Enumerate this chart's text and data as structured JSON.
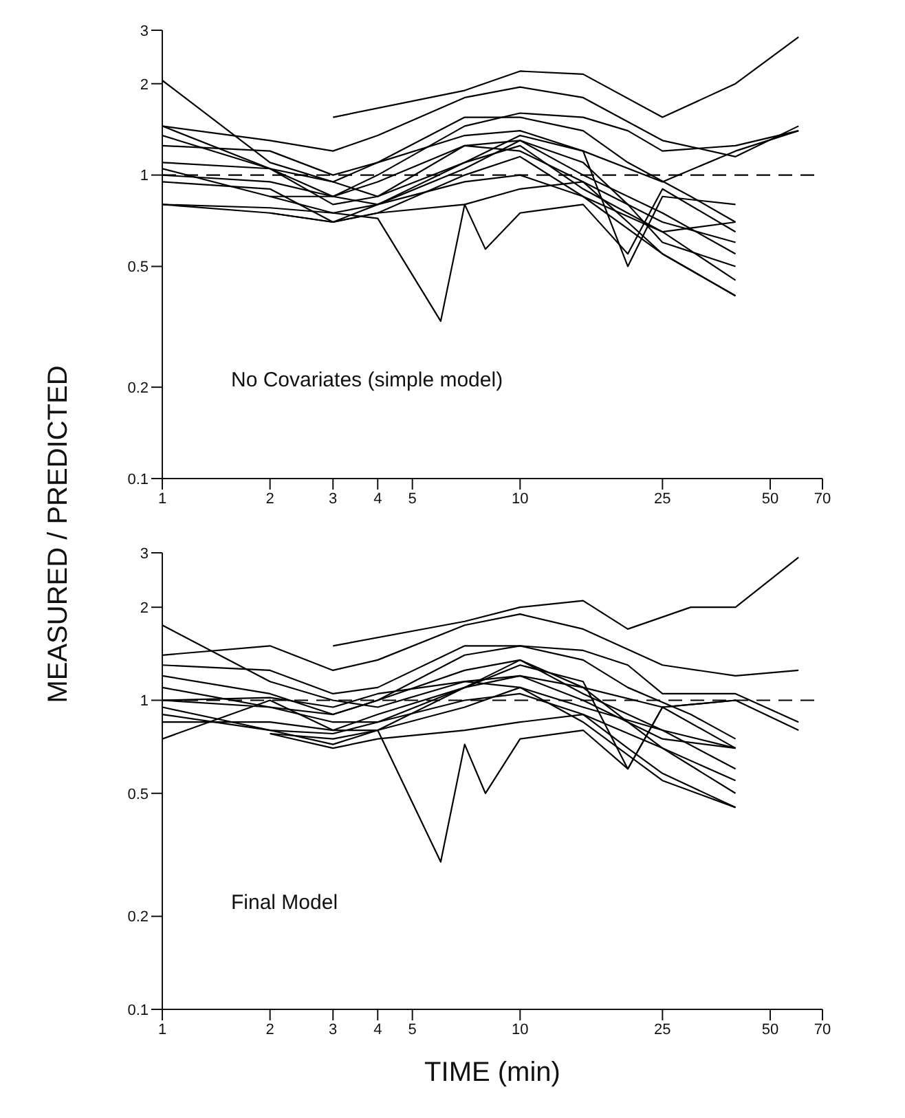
{
  "chart_data": [
    {
      "type": "line",
      "ylabel": "MEASURED / PREDICTED",
      "annotations": [
        "No Covariates (simple model)"
      ],
      "log": "xy",
      "grid": false,
      "marker": "none",
      "line_style": "solid",
      "xlim": [
        1,
        70
      ],
      "xticks": [
        1,
        2,
        3,
        4,
        5,
        10,
        25,
        50,
        70
      ],
      "ylim": [
        0.1,
        3
      ],
      "yticks": [
        0.1,
        0.2,
        0.5,
        1,
        2,
        3
      ],
      "ref_lines": [
        {
          "axis": "y",
          "value": 1,
          "line_style": "dashed",
          "color": "#000000"
        }
      ],
      "series": [
        {
          "color": "#000000",
          "x": [
            1,
            2,
            3,
            4,
            7,
            10,
            15,
            25,
            40
          ],
          "values": [
            2.05,
            1.1,
            0.95,
            0.85,
            1.25,
            1.2,
            0.95,
            0.7,
            0.6
          ]
        },
        {
          "color": "#000000",
          "x": [
            3,
            7,
            10,
            15,
            25,
            40,
            60
          ],
          "values": [
            1.55,
            1.9,
            2.2,
            2.15,
            1.55,
            2.0,
            2.85
          ]
        },
        {
          "color": "#000000",
          "x": [
            1,
            2,
            3,
            4,
            7,
            10,
            15,
            25,
            40,
            60
          ],
          "values": [
            1.45,
            1.3,
            1.2,
            1.35,
            1.8,
            1.95,
            1.8,
            1.3,
            1.15,
            1.45
          ]
        },
        {
          "color": "#000000",
          "x": [
            1,
            2,
            3,
            4,
            7,
            10,
            15,
            25,
            40,
            60
          ],
          "values": [
            1.35,
            1.05,
            0.95,
            1.1,
            1.35,
            1.4,
            1.2,
            0.95,
            1.2,
            1.4
          ]
        },
        {
          "color": "#000000",
          "x": [
            1,
            2,
            3,
            4,
            6,
            7,
            8,
            10,
            15,
            20,
            25,
            40
          ],
          "values": [
            0.8,
            0.78,
            0.75,
            0.72,
            0.33,
            0.8,
            0.57,
            0.75,
            0.8,
            0.55,
            0.9,
            0.65
          ]
        },
        {
          "color": "#000000",
          "x": [
            1,
            2,
            3,
            4,
            7,
            10,
            15,
            25,
            40
          ],
          "values": [
            1.0,
            0.95,
            0.85,
            0.8,
            0.95,
            1.0,
            0.85,
            0.65,
            0.45
          ]
        },
        {
          "color": "#000000",
          "x": [
            1,
            2,
            3,
            4,
            7,
            10,
            15,
            25,
            40
          ],
          "values": [
            1.1,
            1.05,
            0.85,
            0.95,
            1.25,
            1.3,
            1.0,
            0.75,
            0.55
          ]
        },
        {
          "color": "#000000",
          "x": [
            1,
            2,
            3,
            4,
            7,
            10,
            15,
            25,
            40
          ],
          "values": [
            0.95,
            0.9,
            0.7,
            0.75,
            1.0,
            1.15,
            0.85,
            0.55,
            0.4
          ]
        },
        {
          "color": "#000000",
          "x": [
            1,
            2,
            3,
            4,
            7,
            10,
            15,
            25,
            40
          ],
          "values": [
            1.45,
            1.05,
            0.8,
            0.85,
            1.1,
            1.25,
            0.9,
            0.65,
            0.7
          ]
        },
        {
          "color": "#000000",
          "x": [
            2,
            3,
            4,
            7,
            10,
            15,
            20,
            25,
            40
          ],
          "values": [
            0.85,
            0.75,
            0.8,
            1.05,
            1.3,
            1.1,
            0.8,
            0.6,
            0.5
          ]
        },
        {
          "color": "#000000",
          "x": [
            1,
            2,
            3,
            4,
            7,
            10,
            15,
            20,
            30,
            40
          ],
          "values": [
            1.25,
            1.2,
            1.0,
            1.1,
            1.55,
            1.55,
            1.4,
            1.1,
            0.85,
            0.7
          ]
        },
        {
          "color": "#000000",
          "x": [
            1,
            2,
            3,
            4,
            7,
            10,
            15,
            20,
            25,
            40,
            60
          ],
          "values": [
            1.05,
            0.85,
            0.85,
            1.0,
            1.45,
            1.6,
            1.55,
            1.4,
            1.2,
            1.25,
            1.4
          ]
        },
        {
          "color": "#000000",
          "x": [
            2,
            3,
            4,
            7,
            10,
            15,
            20,
            25,
            40
          ],
          "values": [
            0.75,
            0.7,
            0.75,
            0.8,
            0.9,
            0.95,
            0.7,
            0.55,
            0.4
          ]
        },
        {
          "color": "#000000",
          "x": [
            1,
            2,
            3,
            4,
            7,
            10,
            15,
            20,
            25,
            40
          ],
          "values": [
            0.8,
            0.75,
            0.7,
            0.8,
            1.1,
            1.35,
            1.2,
            0.5,
            0.85,
            0.8
          ]
        }
      ]
    },
    {
      "type": "line",
      "xlabel": "TIME (min)",
      "annotations": [
        "Final Model"
      ],
      "log": "xy",
      "grid": false,
      "marker": "none",
      "line_style": "solid",
      "xlim": [
        1,
        70
      ],
      "xticks": [
        1,
        2,
        3,
        4,
        5,
        10,
        25,
        50,
        70
      ],
      "ylim": [
        0.1,
        3
      ],
      "yticks": [
        0.1,
        0.2,
        0.5,
        1,
        2,
        3
      ],
      "ref_lines": [
        {
          "axis": "y",
          "value": 1,
          "line_style": "dashed",
          "color": "#000000"
        }
      ],
      "series": [
        {
          "color": "#000000",
          "x": [
            1,
            2,
            3,
            4,
            7,
            10,
            15,
            25,
            40
          ],
          "values": [
            1.75,
            1.15,
            1.0,
            0.95,
            1.15,
            1.1,
            0.95,
            0.8,
            0.7
          ]
        },
        {
          "color": "#000000",
          "x": [
            3,
            7,
            10,
            15,
            20,
            30,
            40,
            60
          ],
          "values": [
            1.5,
            1.8,
            2.0,
            2.1,
            1.7,
            2.0,
            2.0,
            2.9
          ]
        },
        {
          "color": "#000000",
          "x": [
            1,
            2,
            3,
            4,
            7,
            10,
            15,
            25,
            40,
            60
          ],
          "values": [
            1.4,
            1.5,
            1.25,
            1.35,
            1.75,
            1.9,
            1.7,
            1.3,
            1.2,
            1.25
          ]
        },
        {
          "color": "#000000",
          "x": [
            1,
            2,
            3,
            4,
            7,
            10,
            15,
            25,
            40,
            60
          ],
          "values": [
            1.0,
            1.02,
            0.95,
            1.05,
            1.15,
            1.2,
            1.1,
            0.95,
            1.0,
            0.8
          ]
        },
        {
          "color": "#000000",
          "x": [
            1,
            2,
            3,
            4,
            6,
            7,
            8,
            10,
            15,
            20,
            25,
            40
          ],
          "values": [
            0.85,
            0.85,
            0.8,
            0.8,
            0.3,
            0.72,
            0.5,
            0.75,
            0.8,
            0.6,
            0.95,
            0.7
          ]
        },
        {
          "color": "#000000",
          "x": [
            1,
            2,
            3,
            4,
            7,
            10,
            15,
            25,
            40
          ],
          "values": [
            1.0,
            0.95,
            0.85,
            0.85,
            1.0,
            1.05,
            0.9,
            0.7,
            0.5
          ]
        },
        {
          "color": "#000000",
          "x": [
            1,
            2,
            3,
            4,
            7,
            10,
            15,
            25,
            40
          ],
          "values": [
            1.2,
            1.05,
            0.9,
            1.0,
            1.25,
            1.35,
            1.05,
            0.8,
            0.6
          ]
        },
        {
          "color": "#000000",
          "x": [
            1,
            2,
            3,
            4,
            7,
            10,
            15,
            25,
            40
          ],
          "values": [
            0.9,
            0.8,
            0.72,
            0.8,
            0.95,
            1.1,
            0.85,
            0.55,
            0.45
          ]
        },
        {
          "color": "#000000",
          "x": [
            1,
            2,
            3,
            4,
            7,
            10,
            15,
            25,
            40
          ],
          "values": [
            0.75,
            1.0,
            0.8,
            0.9,
            1.1,
            1.2,
            1.0,
            0.75,
            0.7
          ]
        },
        {
          "color": "#000000",
          "x": [
            2,
            3,
            4,
            7,
            10,
            15,
            20,
            25,
            40
          ],
          "values": [
            0.78,
            0.75,
            0.8,
            1.1,
            1.35,
            1.1,
            0.85,
            0.7,
            0.55
          ]
        },
        {
          "color": "#000000",
          "x": [
            1,
            2,
            3,
            4,
            7,
            10,
            15,
            20,
            30,
            40
          ],
          "values": [
            1.3,
            1.25,
            1.05,
            1.1,
            1.5,
            1.5,
            1.35,
            1.1,
            0.9,
            0.75
          ]
        },
        {
          "color": "#000000",
          "x": [
            1,
            2,
            3,
            4,
            7,
            10,
            15,
            20,
            25,
            40,
            60
          ],
          "values": [
            1.1,
            0.95,
            0.9,
            1.0,
            1.4,
            1.5,
            1.45,
            1.3,
            1.05,
            1.05,
            0.85
          ]
        },
        {
          "color": "#000000",
          "x": [
            2,
            3,
            4,
            7,
            10,
            15,
            20,
            25,
            40
          ],
          "values": [
            0.78,
            0.7,
            0.75,
            0.8,
            0.85,
            0.9,
            0.7,
            0.58,
            0.45
          ]
        },
        {
          "color": "#000000",
          "x": [
            1,
            2,
            3,
            4,
            7,
            10,
            15,
            20,
            25,
            40
          ],
          "values": [
            0.95,
            0.8,
            0.78,
            0.85,
            1.1,
            1.3,
            1.15,
            0.6,
            0.95,
            1.0
          ]
        }
      ]
    }
  ]
}
